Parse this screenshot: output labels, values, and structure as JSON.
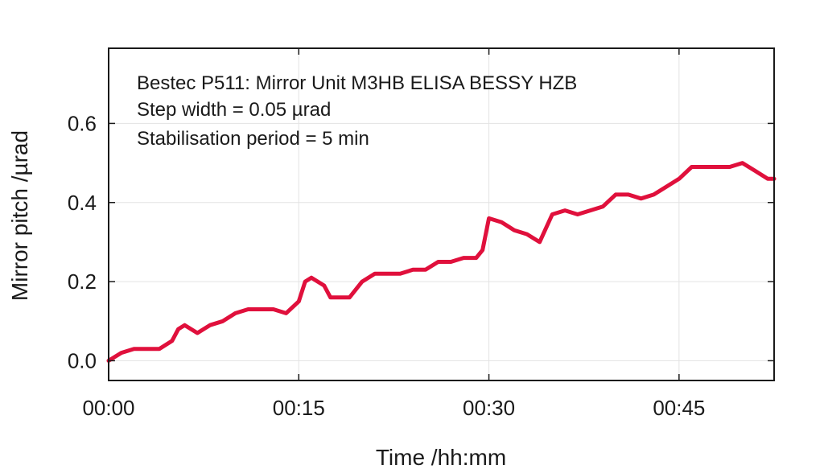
{
  "chart_data": {
    "type": "line",
    "title": "",
    "xlabel": "Time /hh:mm",
    "ylabel": "Mirror pitch /µrad",
    "xlim": [
      0,
      52.5
    ],
    "ylim": [
      -0.05,
      0.79
    ],
    "xticks": [
      0,
      15,
      30,
      45
    ],
    "xtick_labels": [
      "00:00",
      "00:15",
      "00:30",
      "00:45"
    ],
    "yticks": [
      0.0,
      0.2,
      0.4,
      0.6
    ],
    "ytick_labels": [
      "0.0",
      "0.2",
      "0.4",
      "0.6"
    ],
    "grid": true,
    "legend": "none",
    "annotations": [
      "Bestec P511: Mirror Unit M3HB ELISA BESSY HZB",
      "Step width = 0.05 µrad",
      "Stabilisation period = 5 min"
    ],
    "series": [
      {
        "color": "#e0103c",
        "x": [
          0,
          1,
          2,
          3,
          4,
          5,
          5.5,
          6,
          7,
          8,
          9,
          10,
          11,
          12,
          13,
          14,
          15,
          15.5,
          16,
          17,
          17.5,
          18,
          19,
          20,
          21,
          22,
          23,
          24,
          25,
          26,
          27,
          28,
          29,
          29.5,
          30,
          31,
          32,
          33,
          34,
          35,
          36,
          37,
          38,
          39,
          40,
          41,
          42,
          43,
          44,
          45,
          46,
          47,
          48,
          49,
          50,
          51,
          52,
          52.5
        ],
        "y": [
          0.0,
          0.02,
          0.03,
          0.03,
          0.03,
          0.05,
          0.08,
          0.09,
          0.07,
          0.09,
          0.1,
          0.12,
          0.13,
          0.13,
          0.13,
          0.12,
          0.15,
          0.2,
          0.21,
          0.19,
          0.16,
          0.16,
          0.16,
          0.2,
          0.22,
          0.22,
          0.22,
          0.23,
          0.23,
          0.25,
          0.25,
          0.26,
          0.26,
          0.28,
          0.36,
          0.35,
          0.33,
          0.32,
          0.3,
          0.37,
          0.38,
          0.37,
          0.38,
          0.39,
          0.42,
          0.42,
          0.41,
          0.42,
          0.44,
          0.46,
          0.49,
          0.49,
          0.49,
          0.49,
          0.5,
          0.48,
          0.46,
          0.46
        ]
      }
    ]
  }
}
